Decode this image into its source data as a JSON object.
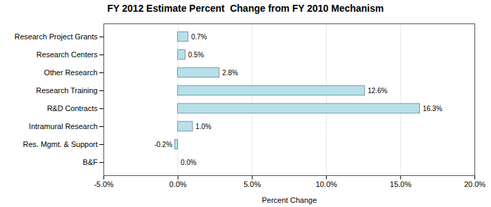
{
  "chart_data": {
    "type": "bar",
    "orientation": "horizontal",
    "title": "FY 2012 Estimate Percent  Change from FY 2010 Mechanism",
    "xlabel": "Percent Change",
    "categories": [
      "B&F",
      "Res. Mgmt. & Support",
      "Intramural Research",
      "R&D Contracts",
      "Research Training",
      "Other Research",
      "Research Centers",
      "Research Project Grants"
    ],
    "values": [
      0.0,
      -0.2,
      1.0,
      16.3,
      12.6,
      2.8,
      0.5,
      0.7
    ],
    "value_labels": [
      "0.0%",
      "-0.2%",
      "1.0%",
      "16.3%",
      "12.6%",
      "2.8%",
      "0.5%",
      "0.7%"
    ],
    "data_labels": true,
    "color": "#b8e0e8",
    "xlim": [
      -5.0,
      20.0
    ],
    "xticks": [
      {
        "value": -5.0,
        "label": "-5.0%"
      },
      {
        "value": 0.0,
        "label": "0.0%"
      },
      {
        "value": 5.0,
        "label": "5.0%"
      },
      {
        "value": 10.0,
        "label": "10.0%"
      },
      {
        "value": 15.0,
        "label": "15.0%"
      },
      {
        "value": 20.0,
        "label": "20.0%"
      }
    ],
    "grid": true
  }
}
